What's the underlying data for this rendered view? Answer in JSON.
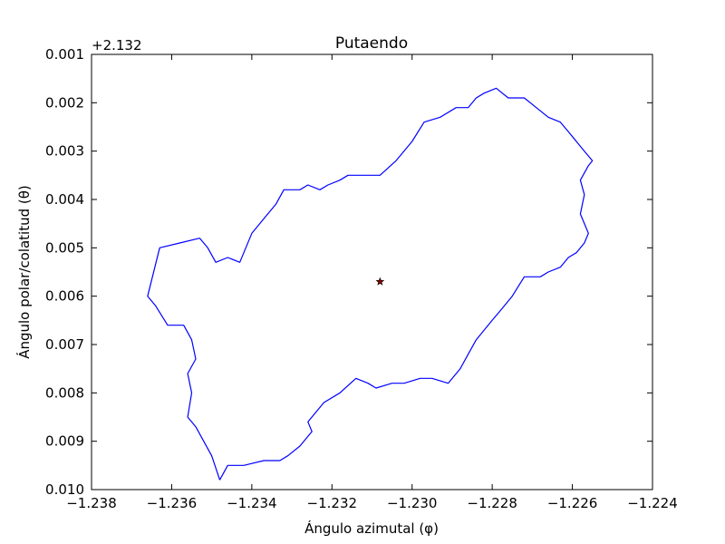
{
  "chart_data": {
    "type": "line",
    "title": "Putaendo",
    "xlabel": "Ángulo azimutal (φ)",
    "ylabel": "Ángulo polar/colatitud (θ)",
    "y_offset_label": "+2.132",
    "xlim": [
      -1.238,
      -1.224
    ],
    "ylim": [
      0.01,
      0.001
    ],
    "y_inverted": true,
    "grid": false,
    "x_ticks": [
      -1.238,
      -1.236,
      -1.234,
      -1.232,
      -1.23,
      -1.228,
      -1.226,
      -1.224
    ],
    "x_tick_labels": [
      "−1.238",
      "−1.236",
      "−1.234",
      "−1.232",
      "−1.230",
      "−1.228",
      "−1.226",
      "−1.224"
    ],
    "y_ticks": [
      0.001,
      0.002,
      0.003,
      0.004,
      0.005,
      0.006,
      0.007,
      0.008,
      0.009,
      0.01
    ],
    "y_tick_labels": [
      "0.001",
      "0.002",
      "0.003",
      "0.004",
      "0.005",
      "0.006",
      "0.007",
      "0.008",
      "0.009",
      "0.010"
    ],
    "series": [
      {
        "line_color": "#0000ff",
        "x": [
          -1.2348,
          -1.2346,
          -1.2342,
          -1.2337,
          -1.2333,
          -1.2331,
          -1.2328,
          -1.2326,
          -1.2325,
          -1.2326,
          -1.2322,
          -1.2318,
          -1.2314,
          -1.2311,
          -1.2309,
          -1.2305,
          -1.2302,
          -1.2298,
          -1.2295,
          -1.2291,
          -1.2288,
          -1.2286,
          -1.2284,
          -1.2282,
          -1.228,
          -1.2278,
          -1.2275,
          -1.2272,
          -1.2268,
          -1.2266,
          -1.2263,
          -1.2261,
          -1.2259,
          -1.2257,
          -1.2256,
          -1.2258,
          -1.2257,
          -1.2258,
          -1.2256,
          -1.2255,
          -1.2257,
          -1.2261,
          -1.2263,
          -1.2266,
          -1.2269,
          -1.2272,
          -1.2276,
          -1.2279,
          -1.2282,
          -1.2284,
          -1.2286,
          -1.2289,
          -1.2293,
          -1.2297,
          -1.23,
          -1.2304,
          -1.2308,
          -1.2312,
          -1.2316,
          -1.2318,
          -1.2321,
          -1.2323,
          -1.2326,
          -1.2328,
          -1.2332,
          -1.2334,
          -1.2337,
          -1.234,
          -1.2343,
          -1.2346,
          -1.2349,
          -1.2351,
          -1.2353,
          -1.2358,
          -1.2363,
          -1.2366,
          -1.2364,
          -1.2361,
          -1.2357,
          -1.2355,
          -1.2354,
          -1.2356,
          -1.2355,
          -1.2356,
          -1.2354,
          -1.2352,
          -1.235,
          -1.2348
        ],
        "y": [
          0.0098,
          0.0095,
          0.0095,
          0.0094,
          0.0094,
          0.0093,
          0.0091,
          0.0089,
          0.0088,
          0.0086,
          0.0082,
          0.008,
          0.0077,
          0.0078,
          0.0079,
          0.0078,
          0.0078,
          0.0077,
          0.0077,
          0.0078,
          0.0075,
          0.0072,
          0.0069,
          0.0067,
          0.0065,
          0.0063,
          0.006,
          0.0056,
          0.0056,
          0.0055,
          0.0054,
          0.0052,
          0.0051,
          0.0049,
          0.0047,
          0.0043,
          0.0039,
          0.0036,
          0.0033,
          0.0032,
          0.003,
          0.0026,
          0.0024,
          0.0023,
          0.0021,
          0.0019,
          0.0019,
          0.0017,
          0.0018,
          0.0019,
          0.0021,
          0.0021,
          0.0023,
          0.0024,
          0.0028,
          0.0032,
          0.0035,
          0.0035,
          0.0035,
          0.0036,
          0.0037,
          0.0038,
          0.0037,
          0.0038,
          0.0038,
          0.0041,
          0.0044,
          0.0047,
          0.0053,
          0.0052,
          0.0053,
          0.005,
          0.0048,
          0.0049,
          0.005,
          0.006,
          0.0062,
          0.0066,
          0.0066,
          0.0069,
          0.0073,
          0.0076,
          0.008,
          0.0085,
          0.0087,
          0.009,
          0.0093,
          0.0098
        ]
      }
    ],
    "markers": [
      {
        "x": -1.2308,
        "y": 0.0057,
        "shape": "star",
        "color": "#8b0000"
      }
    ]
  }
}
